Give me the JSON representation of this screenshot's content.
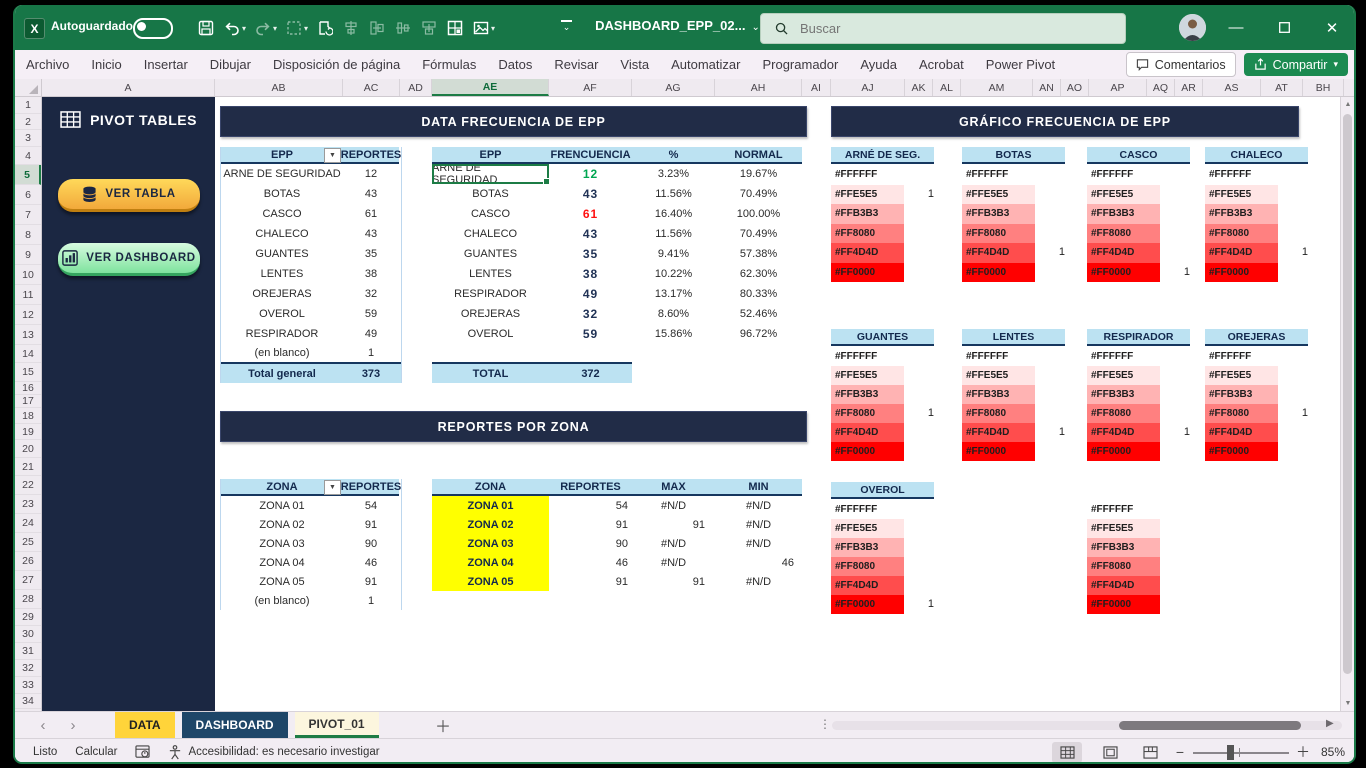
{
  "titlebar": {
    "autosave_label": "Autoguardado",
    "doc_title": "DASHBOARD_EPP_02...",
    "search_placeholder": "Buscar"
  },
  "ribbon": {
    "menus": [
      "Archivo",
      "Inicio",
      "Insertar",
      "Dibujar",
      "Disposición de página",
      "Fórmulas",
      "Datos",
      "Revisar",
      "Vista",
      "Automatizar",
      "Programador",
      "Ayuda",
      "Acrobat",
      "Power Pivot"
    ],
    "comments_label": "Comentarios",
    "share_label": "Compartir"
  },
  "grid": {
    "columns": [
      "A",
      "AB",
      "AC",
      "AD",
      "AE",
      "AF",
      "AG",
      "AH",
      "AI",
      "AJ",
      "AK",
      "AL",
      "AM",
      "AN",
      "AO",
      "AP",
      "AQ",
      "AR",
      "AS",
      "AT",
      "BH"
    ],
    "selected_column": "AE",
    "row_count": 34,
    "selected_row": 5
  },
  "sidebar": {
    "title": "PIVOT TABLES",
    "btn_table": "VER TABLA",
    "btn_dashboard": "VER DASHBOARD"
  },
  "section_frecuencia": {
    "title": "DATA FRECUENCIA DE EPP",
    "pivot": {
      "headers": [
        "EPP",
        "REPORTES"
      ],
      "rows": [
        [
          "ARNE DE SEGURIDAD",
          "12"
        ],
        [
          "BOTAS",
          "43"
        ],
        [
          "CASCO",
          "61"
        ],
        [
          "CHALECO",
          "43"
        ],
        [
          "GUANTES",
          "35"
        ],
        [
          "LENTES",
          "38"
        ],
        [
          "OREJERAS",
          "32"
        ],
        [
          "OVEROL",
          "59"
        ],
        [
          "RESPIRADOR",
          "49"
        ],
        [
          "(en blanco)",
          "1"
        ]
      ],
      "total_label": "Total general",
      "total_value": "373"
    },
    "analysis": {
      "headers": [
        "EPP",
        "FRENCUENCIA",
        "%",
        "NORMAL"
      ],
      "rows": [
        {
          "epp": "ARNE DE SEGURIDAD",
          "freq": "12",
          "pct": "3.23%",
          "normal": "19.67%",
          "color": "green"
        },
        {
          "epp": "BOTAS",
          "freq": "43",
          "pct": "11.56%",
          "normal": "70.49%",
          "color": "navy"
        },
        {
          "epp": "CASCO",
          "freq": "61",
          "pct": "16.40%",
          "normal": "100.00%",
          "color": "red"
        },
        {
          "epp": "CHALECO",
          "freq": "43",
          "pct": "11.56%",
          "normal": "70.49%",
          "color": "navy"
        },
        {
          "epp": "GUANTES",
          "freq": "35",
          "pct": "9.41%",
          "normal": "57.38%",
          "color": "navy"
        },
        {
          "epp": "LENTES",
          "freq": "38",
          "pct": "10.22%",
          "normal": "62.30%",
          "color": "navy"
        },
        {
          "epp": "RESPIRADOR",
          "freq": "49",
          "pct": "13.17%",
          "normal": "80.33%",
          "color": "navy"
        },
        {
          "epp": "OREJERAS",
          "freq": "32",
          "pct": "8.60%",
          "normal": "52.46%",
          "color": "navy"
        },
        {
          "epp": "OVEROL",
          "freq": "59",
          "pct": "15.86%",
          "normal": "96.72%",
          "color": "navy"
        }
      ],
      "total_label": "TOTAL",
      "total_value": "372",
      "value_colors": {
        "green": "#00A651",
        "red": "#FF1111",
        "navy": "#203255"
      }
    }
  },
  "section_zona": {
    "title": "REPORTES POR ZONA",
    "pivot": {
      "headers": [
        "ZONA",
        "REPORTES"
      ],
      "rows": [
        [
          "ZONA 01",
          "54"
        ],
        [
          "ZONA 02",
          "91"
        ],
        [
          "ZONA 03",
          "90"
        ],
        [
          "ZONA 04",
          "46"
        ],
        [
          "ZONA 05",
          "91"
        ],
        [
          "(en blanco)",
          "1"
        ]
      ]
    },
    "analysis": {
      "headers": [
        "ZONA",
        "REPORTES",
        "MAX",
        "MIN"
      ],
      "rows": [
        {
          "zona": "ZONA 01",
          "reportes": "54",
          "max": "#N/D",
          "min": "#N/D"
        },
        {
          "zona": "ZONA 02",
          "reportes": "91",
          "max": "91",
          "min": "#N/D"
        },
        {
          "zona": "ZONA 03",
          "reportes": "90",
          "max": "#N/D",
          "min": "#N/D"
        },
        {
          "zona": "ZONA 04",
          "reportes": "46",
          "max": "#N/D",
          "min": "46"
        },
        {
          "zona": "ZONA 05",
          "reportes": "91",
          "max": "91",
          "min": "#N/D"
        }
      ],
      "highlight_color": "#FFFF00"
    }
  },
  "section_grafico": {
    "title": "GRÁFICO FRECUENCIA DE EPP",
    "palette": [
      "#FFFFFF",
      "#FFE5E5",
      "#FFB3B3",
      "#FF8080",
      "#FF4D4D",
      "#FF0000"
    ],
    "groups": [
      {
        "label": "ARNÉ DE SEG.",
        "value": "1",
        "value_row": 1
      },
      {
        "label": "BOTAS",
        "value": "1",
        "value_row": 4
      },
      {
        "label": "CASCO",
        "value": "1",
        "value_row": 5
      },
      {
        "label": "CHALECO",
        "value": "1",
        "value_row": 4
      },
      {
        "label": "GUANTES",
        "value": "1",
        "value_row": 3
      },
      {
        "label": "LENTES",
        "value": "1",
        "value_row": 4
      },
      {
        "label": "RESPIRADOR",
        "value": "1",
        "value_row": 4
      },
      {
        "label": "OREJERAS",
        "value": "1",
        "value_row": 3
      },
      {
        "label": "OVEROL",
        "value": "1",
        "value_row": 5
      },
      {
        "label": "",
        "value": "",
        "value_row": -1
      }
    ]
  },
  "tabs": {
    "sheets": [
      {
        "name": "DATA",
        "style": "yellow"
      },
      {
        "name": "DASHBOARD",
        "style": "navy"
      },
      {
        "name": "PIVOT_01",
        "style": "active"
      }
    ]
  },
  "statusbar": {
    "mode": "Listo",
    "calc": "Calcular",
    "accessibility": "Accesibilidad: es necesario investigar",
    "zoom": "85%"
  },
  "theme": {
    "accent_green": "#1E7C45",
    "navy_banner": "#212C47",
    "header_blue": "#BCE2F2"
  }
}
